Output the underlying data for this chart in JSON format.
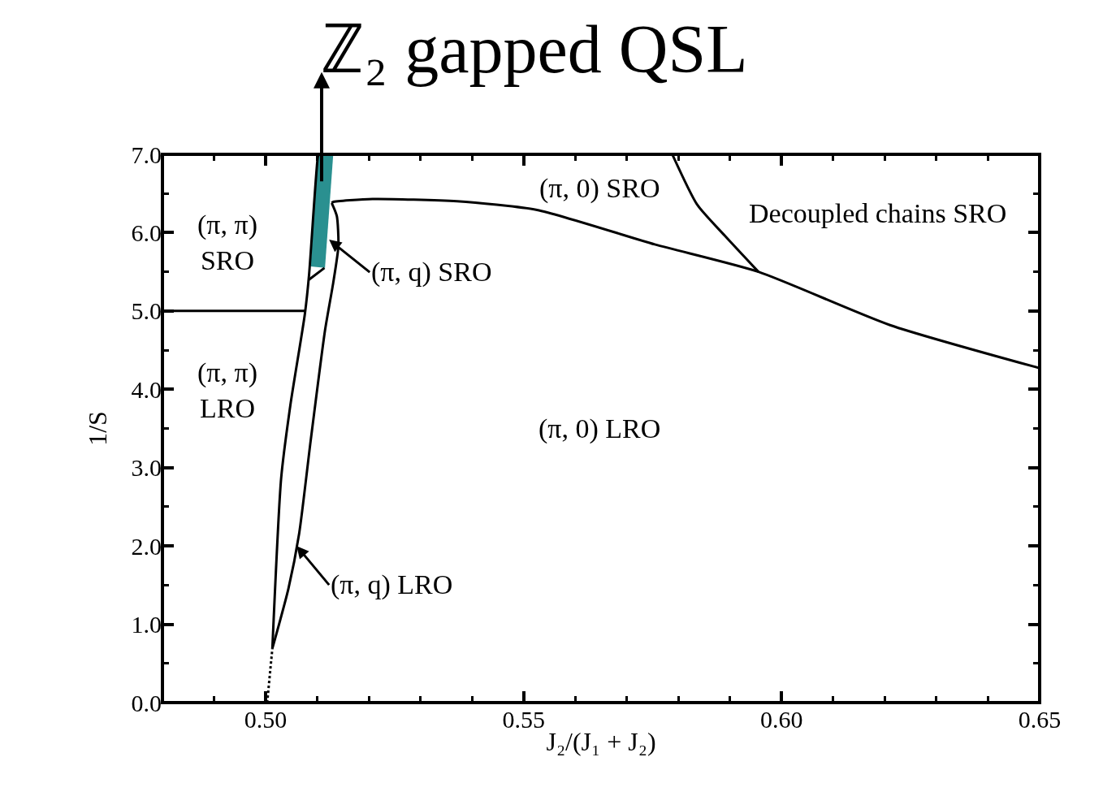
{
  "chart_data": {
    "type": "line",
    "title": "ℤ₂ gapped QSL",
    "xlabel": "J₂/(J₁ + J₂)",
    "ylabel": "1/S",
    "xlim": [
      0.48,
      0.65
    ],
    "ylim": [
      0,
      7
    ],
    "xticks": [
      {
        "value": 0.49,
        "label": null
      },
      {
        "value": 0.5,
        "label": "0.50"
      },
      {
        "value": 0.51,
        "label": null
      },
      {
        "value": 0.52,
        "label": null
      },
      {
        "value": 0.53,
        "label": null
      },
      {
        "value": 0.54,
        "label": null
      },
      {
        "value": 0.55,
        "label": "0.55"
      },
      {
        "value": 0.56,
        "label": null
      },
      {
        "value": 0.57,
        "label": null
      },
      {
        "value": 0.58,
        "label": null
      },
      {
        "value": 0.59,
        "label": null
      },
      {
        "value": 0.6,
        "label": "0.60"
      },
      {
        "value": 0.61,
        "label": null
      },
      {
        "value": 0.62,
        "label": null
      },
      {
        "value": 0.63,
        "label": null
      },
      {
        "value": 0.64,
        "label": null
      },
      {
        "value": 0.65,
        "label": "0.65"
      }
    ],
    "yticks": [
      {
        "value": 0,
        "label": "0.0"
      },
      {
        "value": 0.5,
        "label": null
      },
      {
        "value": 1,
        "label": "1.0"
      },
      {
        "value": 1.5,
        "label": null
      },
      {
        "value": 2,
        "label": "2.0"
      },
      {
        "value": 2.5,
        "label": null
      },
      {
        "value": 3,
        "label": "3.0"
      },
      {
        "value": 3.5,
        "label": null
      },
      {
        "value": 4,
        "label": "4.0"
      },
      {
        "value": 4.5,
        "label": null
      },
      {
        "value": 5,
        "label": "5.0"
      },
      {
        "value": 5.5,
        "label": null
      },
      {
        "value": 6,
        "label": "6.0"
      },
      {
        "value": 6.5,
        "label": null
      },
      {
        "value": 7,
        "label": "7.0"
      }
    ],
    "marker": "none",
    "line_style": "solid",
    "series": [
      {
        "type": "area",
        "color": "#2a9090",
        "x": [
          0.5087,
          0.5101,
          0.5131,
          0.5115
        ],
        "values": [
          5.57,
          7.0,
          7.0,
          5.55
        ]
      },
      {
        "color": "#000000",
        "line_style": "dotted",
        "x": [
          0.5003,
          0.5013
        ],
        "values": [
          0.0,
          0.69
        ]
      },
      {
        "color": "#000000",
        "x": [
          0.5013,
          0.503,
          0.5048,
          0.5076,
          0.5084,
          0.5101,
          0.5103
        ],
        "values": [
          0.69,
          2.86,
          3.8,
          4.96,
          5.45,
          6.96,
          7.0
        ]
      },
      {
        "color": "#000000",
        "x": [
          0.48,
          0.5076
        ],
        "values": [
          5.0,
          5.0
        ]
      },
      {
        "color": "#000000",
        "x": [
          0.5084,
          0.5114
        ],
        "values": [
          5.4,
          5.55
        ]
      },
      {
        "color": "#000000",
        "x": [
          0.5013,
          0.5044,
          0.5065,
          0.5087,
          0.5115,
          0.5131,
          0.5141,
          0.5138,
          0.5128
        ],
        "values": [
          0.69,
          1.45,
          2.16,
          3.33,
          4.75,
          5.36,
          5.83,
          6.21,
          6.38
        ]
      },
      {
        "color": "#000000",
        "x": [
          0.5128,
          0.513,
          0.5207,
          0.5371,
          0.5526,
          0.5754,
          0.5955,
          0.621,
          0.65
        ],
        "values": [
          6.38,
          6.39,
          6.43,
          6.4,
          6.29,
          5.85,
          5.5,
          4.82,
          4.27
        ]
      },
      {
        "color": "#000000",
        "x": [
          0.5788,
          0.5836,
          0.589,
          0.5955
        ],
        "values": [
          7.0,
          6.36,
          5.96,
          5.5
        ]
      }
    ],
    "annotations": [
      "(π, π)\nSRO",
      "(π, π)\nLRO",
      "(π, 0) SRO",
      "Decoupled chains SRO",
      {
        "text": "(π, q) SRO",
        "x": 0.5123,
        "y": 5.91
      },
      "(π, 0) LRO",
      {
        "text": "(π, q) LRO",
        "x": 0.506,
        "y": 2.0
      }
    ]
  }
}
